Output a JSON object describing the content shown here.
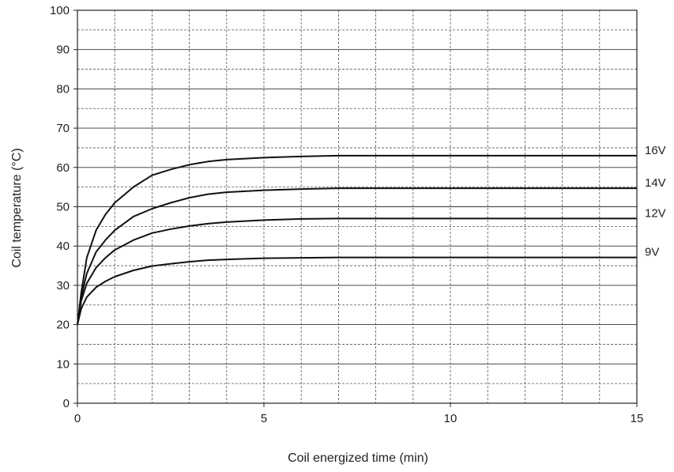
{
  "chart_data": {
    "type": "line",
    "title": "",
    "xlabel": "Coil energized time (min)",
    "ylabel": "Coil temperature (°C)",
    "xlim": [
      0,
      15
    ],
    "ylim": [
      0,
      100
    ],
    "x_ticks": [
      0,
      5,
      10,
      15
    ],
    "y_ticks": [
      0,
      10,
      20,
      30,
      40,
      50,
      60,
      70,
      80,
      90,
      100
    ],
    "x_minor_step": 1,
    "y_minor_step": 5,
    "grid": true,
    "legend": "labels at right end of each line",
    "line_color": "#111111",
    "series": [
      {
        "name": "16V",
        "x": [
          0,
          0.1,
          0.25,
          0.5,
          0.75,
          1,
          1.5,
          2,
          2.5,
          3,
          3.5,
          4,
          5,
          6,
          7,
          10,
          15
        ],
        "y": [
          20,
          28,
          37,
          44,
          48,
          51,
          55,
          58,
          59.5,
          60.7,
          61.5,
          62,
          62.5,
          62.8,
          63,
          63,
          63
        ]
      },
      {
        "name": "14V",
        "x": [
          0,
          0.1,
          0.25,
          0.5,
          0.75,
          1,
          1.5,
          2,
          2.5,
          3,
          3.5,
          4,
          5,
          6,
          7,
          10,
          15
        ],
        "y": [
          20,
          27,
          33,
          38.5,
          41.5,
          44,
          47.5,
          49.5,
          51,
          52.3,
          53.2,
          53.7,
          54.2,
          54.5,
          54.7,
          54.7,
          54.7
        ]
      },
      {
        "name": "12V",
        "x": [
          0,
          0.1,
          0.25,
          0.5,
          0.75,
          1,
          1.5,
          2,
          2.5,
          3,
          3.5,
          4,
          5,
          6,
          7,
          10,
          15
        ],
        "y": [
          20,
          26,
          30.5,
          34.5,
          37,
          39,
          41.5,
          43.3,
          44.3,
          45.1,
          45.7,
          46.1,
          46.6,
          46.9,
          47,
          47,
          47
        ]
      },
      {
        "name": "9V",
        "x": [
          0,
          0.1,
          0.25,
          0.5,
          0.75,
          1,
          1.5,
          2,
          2.5,
          3,
          3.5,
          4,
          5,
          6,
          7,
          10,
          15
        ],
        "y": [
          20,
          24,
          27,
          29.5,
          31,
          32.2,
          33.8,
          34.9,
          35.5,
          36,
          36.4,
          36.6,
          36.9,
          37,
          37.1,
          37.1,
          37.1
        ]
      }
    ]
  }
}
